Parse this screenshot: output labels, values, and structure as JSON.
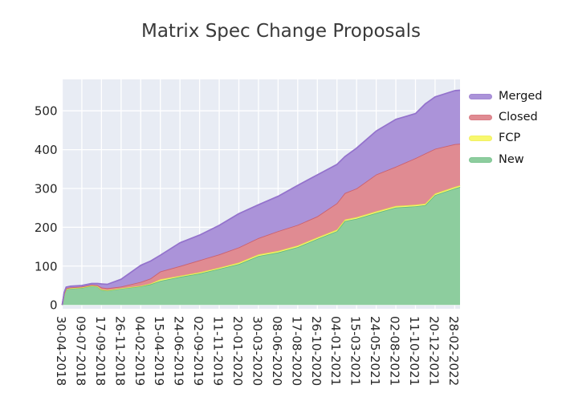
{
  "chart_data": {
    "type": "area",
    "stacked": true,
    "title": "Matrix Spec Change Proposals",
    "xlabel": "",
    "ylabel": "",
    "grid": true,
    "panel_color": "#e8ecf4",
    "grid_color": "#ffffff",
    "legend_position": "outside upper right",
    "legend_order": [
      "Merged",
      "Closed",
      "FCP",
      "New"
    ],
    "y_ticks": [
      0,
      100,
      200,
      300,
      400,
      500
    ],
    "ylim": [
      -10,
      581
    ],
    "x_tick_labels": [
      "30-04-2018",
      "09-07-2018",
      "17-09-2018",
      "26-11-2018",
      "04-02-2019",
      "15-04-2019",
      "24-06-2019",
      "02-09-2019",
      "11-11-2019",
      "20-01-2020",
      "30-03-2020",
      "08-06-2020",
      "17-08-2020",
      "26-10-2020",
      "04-01-2021",
      "15-03-2021",
      "24-05-2021",
      "02-08-2021",
      "11-10-2021",
      "20-12-2021",
      "28-02-2022"
    ],
    "x_range": [
      "30-04-2018",
      "19-03-2022"
    ],
    "series": [
      {
        "name": "New",
        "fill": "#8dcd9e",
        "edge": "#62b97e"
      },
      {
        "name": "FCP",
        "fill": "#f8f86e",
        "edge": "#e3e04e"
      },
      {
        "name": "Closed",
        "fill": "#e08b92",
        "edge": "#cb5f6c"
      },
      {
        "name": "Merged",
        "fill": "#ab93d9",
        "edge": "#9372cc"
      }
    ],
    "points": {
      "dates": [
        "30-04-2018",
        "07-05-2018",
        "14-05-2018",
        "28-05-2018",
        "09-07-2018",
        "13-08-2018",
        "03-09-2018",
        "17-09-2018",
        "08-10-2018",
        "26-11-2018",
        "04-02-2019",
        "11-03-2019",
        "15-04-2019",
        "24-06-2019",
        "02-09-2019",
        "11-11-2019",
        "20-01-2020",
        "30-03-2020",
        "08-06-2020",
        "17-08-2020",
        "26-10-2020",
        "04-01-2021",
        "01-02-2021",
        "15-03-2021",
        "24-05-2021",
        "02-08-2021",
        "11-10-2021",
        "15-11-2021",
        "20-12-2021",
        "28-02-2022",
        "19-03-2022"
      ],
      "New": [
        0,
        26,
        40,
        42,
        44,
        49,
        47,
        39,
        37,
        42,
        48,
        53,
        62,
        72,
        81,
        93,
        105,
        126,
        135,
        149,
        170,
        190,
        216,
        222,
        237,
        251,
        254,
        257,
        283,
        300,
        304
      ],
      "FCP": [
        0,
        1,
        1,
        1,
        1,
        1,
        1,
        1,
        1,
        1,
        1,
        2,
        4,
        3,
        3,
        3,
        4,
        4,
        4,
        4,
        4,
        4,
        4,
        4,
        4,
        4,
        4,
        4,
        4,
        4,
        4
      ],
      "Closed": [
        0,
        2,
        2,
        2,
        2,
        2,
        3,
        5,
        5,
        4,
        10,
        13,
        20,
        25,
        31,
        34,
        39,
        42,
        51,
        53,
        54,
        68,
        68,
        74,
        95,
        101,
        120,
        129,
        115,
        110,
        107
      ],
      "Merged": [
        0,
        3,
        3,
        3,
        3,
        3,
        4,
        9,
        10,
        19,
        43,
        45,
        42,
        60,
        65,
        75,
        87,
        86,
        90,
        102,
        107,
        100,
        94,
        104,
        112,
        122,
        115,
        128,
        134,
        138,
        138
      ]
    }
  }
}
